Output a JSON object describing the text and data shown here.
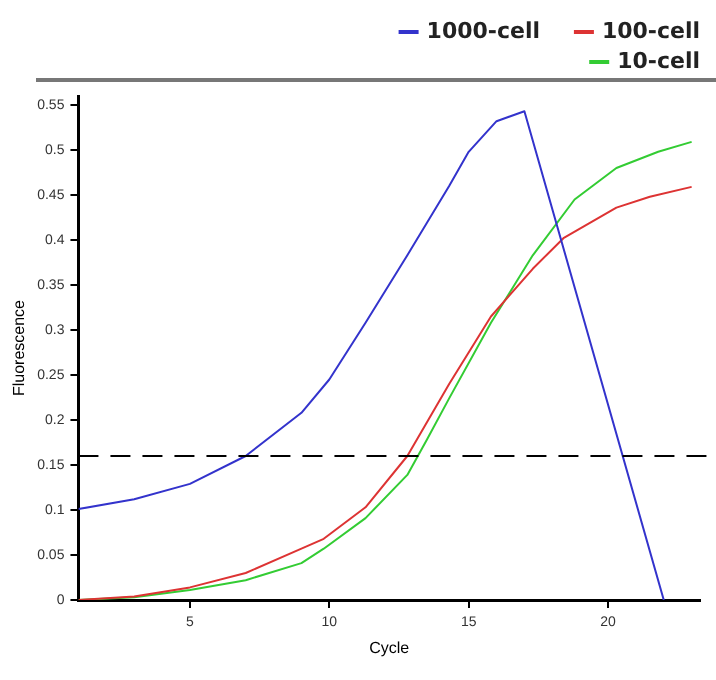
{
  "chart_data": {
    "type": "line",
    "xlabel": "Cycle",
    "ylabel": "Fluorescence",
    "xlim": [
      1,
      23.3
    ],
    "xticks": [
      5,
      10,
      15,
      20
    ],
    "ylim": [
      0,
      0.56
    ],
    "yticks": [
      0,
      0.05,
      0.1,
      0.15,
      0.2,
      0.25,
      0.3,
      0.35,
      0.4,
      0.45,
      0.5,
      0.55
    ],
    "grid": false,
    "legend": "top right",
    "marker": "none",
    "line_style": "solid",
    "ref_lines": [
      {
        "axis": "y",
        "value": 0.16,
        "line_style": "dashed",
        "color": "#000000"
      }
    ],
    "series": [
      {
        "name": "1000-cell",
        "color": "#3333cc",
        "x": [
          1,
          3,
          5,
          7,
          9,
          10,
          11.3,
          12.8,
          14.3,
          15,
          16,
          17,
          22
        ],
        "values": [
          0.101,
          0.112,
          0.129,
          0.16,
          0.208,
          0.245,
          0.308,
          0.383,
          0.46,
          0.498,
          0.532,
          0.543,
          0
        ]
      },
      {
        "name": "100-cell",
        "color": "#dd3333",
        "x": [
          1,
          3,
          5,
          7,
          9,
          9.8,
          11.3,
          12.8,
          14.3,
          15.8,
          17.3,
          18.4,
          20.3,
          21.5,
          23
        ],
        "values": [
          0,
          0.004,
          0.014,
          0.03,
          0.057,
          0.068,
          0.103,
          0.16,
          0.24,
          0.315,
          0.368,
          0.402,
          0.436,
          0.448,
          0.459
        ]
      },
      {
        "name": "10-cell",
        "color": "#33cc33",
        "x": [
          1,
          3,
          5,
          7,
          9,
          9.8,
          11.3,
          12.8,
          13.5,
          14.3,
          15.8,
          17.3,
          18.8,
          20.3,
          21.8,
          23
        ],
        "values": [
          0,
          0.003,
          0.011,
          0.022,
          0.041,
          0.057,
          0.091,
          0.139,
          0.178,
          0.224,
          0.308,
          0.383,
          0.445,
          0.48,
          0.498,
          0.509
        ]
      }
    ]
  }
}
